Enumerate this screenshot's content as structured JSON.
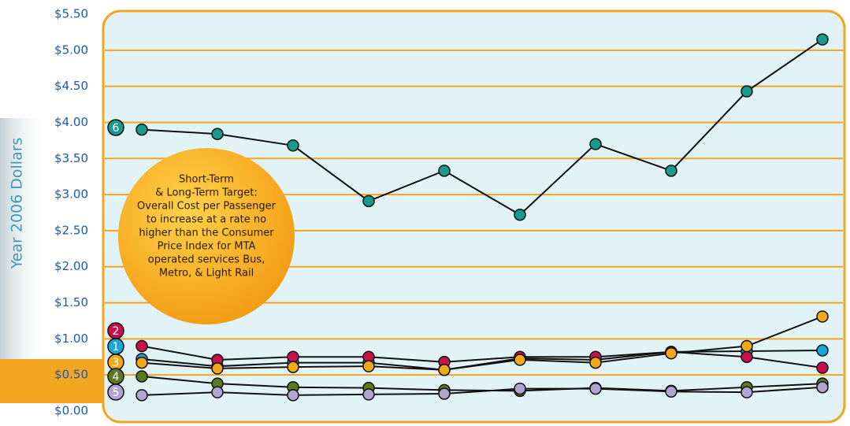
{
  "chart_data": {
    "type": "line",
    "y_label": "Year 2006 Dollars",
    "annotation": [
      "Short-Term",
      "& Long-Term Target:",
      "Overall Cost per Passenger",
      "to increase at a rate no",
      "higher than the Consumer",
      "Price Index for MTA",
      "operated services Bus,",
      "Metro, & Light Rail"
    ],
    "categories": [
      null,
      null,
      null,
      null,
      null,
      null,
      null,
      null,
      null,
      null
    ],
    "series": [
      {
        "name": "1",
        "color": "#1aa6d9",
        "values": [
          0.72,
          0.62,
          0.67,
          0.67,
          0.57,
          0.73,
          0.71,
          0.82,
          0.83,
          0.84
        ]
      },
      {
        "name": "2",
        "color": "#c8104f",
        "values": [
          0.9,
          0.71,
          0.75,
          0.75,
          0.68,
          0.75,
          0.75,
          0.82,
          0.75,
          0.6
        ]
      },
      {
        "name": "3",
        "color": "#f0a81c",
        "values": [
          0.67,
          0.59,
          0.61,
          0.62,
          0.57,
          0.71,
          0.67,
          0.8,
          0.9,
          1.31
        ]
      },
      {
        "name": "4",
        "color": "#5b7a1f",
        "values": [
          0.48,
          0.38,
          0.33,
          0.32,
          0.29,
          0.28,
          0.32,
          0.28,
          0.33,
          0.38
        ]
      },
      {
        "name": "5",
        "color": "#b0a4d0",
        "values": [
          0.22,
          0.26,
          0.22,
          0.23,
          0.24,
          0.31,
          0.31,
          0.27,
          0.26,
          0.33
        ]
      },
      {
        "name": "6",
        "color": "#1a9a8a",
        "values": [
          3.9,
          3.84,
          3.68,
          2.91,
          3.33,
          2.72,
          3.7,
          3.33,
          4.43,
          5.15
        ]
      }
    ],
    "ylim": [
      0,
      5.5
    ],
    "yticks": [
      {
        "value": 0,
        "label": "$0.00"
      },
      {
        "value": 0.5,
        "label": "$0.50"
      },
      {
        "value": 1,
        "label": "$1.00"
      },
      {
        "value": 1.5,
        "label": "$1.50"
      },
      {
        "value": 2,
        "label": "$2.00"
      },
      {
        "value": 2.5,
        "label": "$2.50"
      },
      {
        "value": 3,
        "label": "$3.00"
      },
      {
        "value": 3.5,
        "label": "$3.50"
      },
      {
        "value": 4,
        "label": "$4.00"
      },
      {
        "value": 4.5,
        "label": "$4.50"
      },
      {
        "value": 5,
        "label": "$5.00"
      },
      {
        "value": 5.5,
        "label": "$5.50"
      }
    ],
    "grid": true
  }
}
